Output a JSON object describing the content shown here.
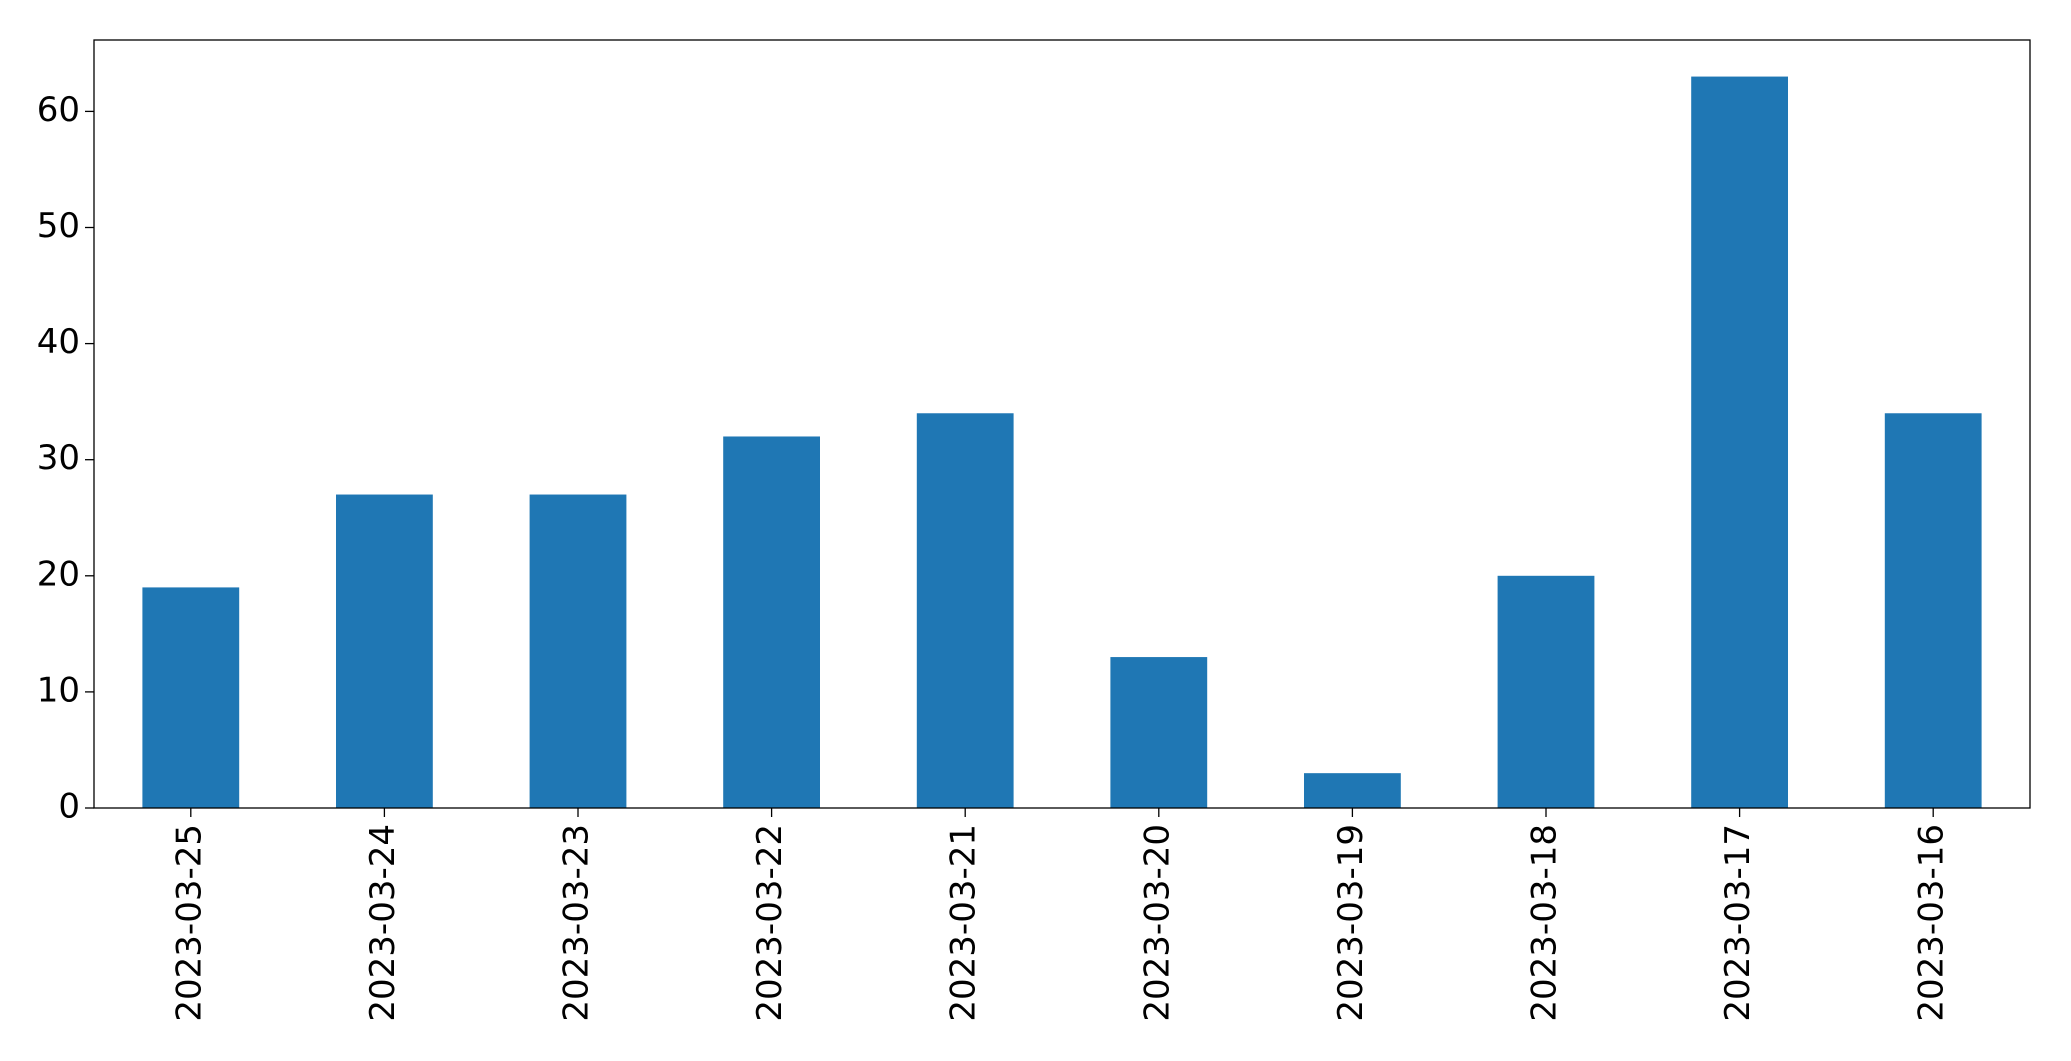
{
  "chart_data": {
    "type": "bar",
    "categories": [
      "2023-03-25",
      "2023-03-24",
      "2023-03-23",
      "2023-03-22",
      "2023-03-21",
      "2023-03-20",
      "2023-03-19",
      "2023-03-18",
      "2023-03-17",
      "2023-03-16"
    ],
    "values": [
      19,
      27,
      27,
      32,
      34,
      13,
      3,
      20,
      63,
      34
    ],
    "color": "#1f77b4",
    "ylim": [
      0,
      66.15
    ],
    "yticks": [
      0,
      10,
      20,
      30,
      40,
      50,
      60
    ],
    "grid": false
  }
}
